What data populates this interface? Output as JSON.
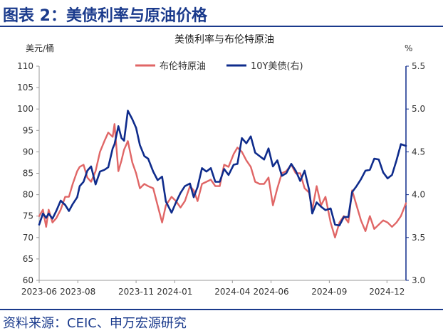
{
  "figure": {
    "title": "图表 2：美债利率与原油价格",
    "source": "资料来源：CEIC、申万宏源研究"
  },
  "colors": {
    "brand_blue": "#1a3a8c",
    "brent": "#e06666",
    "treasury": "#0f2c8c"
  },
  "chart_data": {
    "type": "line",
    "title": "美债利率与布伦特原油",
    "left_axis": {
      "unit": "美元/桶",
      "ylim": [
        60,
        110
      ],
      "ticks": [
        "110",
        "105",
        "100",
        "95",
        "90",
        "85",
        "80",
        "75",
        "70",
        "65",
        "60"
      ]
    },
    "right_axis": {
      "unit": "%",
      "ylim": [
        3.0,
        5.5
      ],
      "ticks": [
        "5.5",
        "5.0",
        "4.5",
        "4.0",
        "3.5",
        "3.0"
      ]
    },
    "xlim": [
      "2023-06-01",
      "2024-12-31"
    ],
    "x_ticks": [
      {
        "date": "2023-06-01",
        "label": "2023-06"
      },
      {
        "date": "2023-08-01",
        "label": "2023-08"
      },
      {
        "date": "2023-11-01",
        "label": "2023-11"
      },
      {
        "date": "2024-01-01",
        "label": "2024-01"
      },
      {
        "date": "2024-04-01",
        "label": "2024-04"
      },
      {
        "date": "2024-06-01",
        "label": "2024-06"
      },
      {
        "date": "2024-09-01",
        "label": "2024-09"
      },
      {
        "date": "2024-12-01",
        "label": "2024-12"
      }
    ],
    "legend": {
      "position": "top-center"
    },
    "series": [
      {
        "name": "布伦特原油",
        "axis": "left",
        "color": "#e06666",
        "points": [
          [
            "2023-06-01",
            75
          ],
          [
            "2023-06-07",
            76.5
          ],
          [
            "2023-06-12",
            72.5
          ],
          [
            "2023-06-16",
            76.5
          ],
          [
            "2023-06-22",
            73.5
          ],
          [
            "2023-06-28",
            74.5
          ],
          [
            "2023-07-05",
            76.5
          ],
          [
            "2023-07-12",
            79.5
          ],
          [
            "2023-07-18",
            79.5
          ],
          [
            "2023-07-24",
            82.5
          ],
          [
            "2023-07-31",
            85.5
          ],
          [
            "2023-08-04",
            86.5
          ],
          [
            "2023-08-10",
            87
          ],
          [
            "2023-08-16",
            84
          ],
          [
            "2023-08-22",
            83
          ],
          [
            "2023-08-29",
            85.5
          ],
          [
            "2023-09-05",
            90
          ],
          [
            "2023-09-12",
            92.5
          ],
          [
            "2023-09-18",
            94.5
          ],
          [
            "2023-09-25",
            93.5
          ],
          [
            "2023-09-28",
            96.5
          ],
          [
            "2023-10-04",
            85.5
          ],
          [
            "2023-10-09",
            88
          ],
          [
            "2023-10-13",
            90.5
          ],
          [
            "2023-10-19",
            92.5
          ],
          [
            "2023-10-26",
            87.5
          ],
          [
            "2023-11-01",
            85
          ],
          [
            "2023-11-07",
            81.5
          ],
          [
            "2023-11-14",
            82.5
          ],
          [
            "2023-11-20",
            82
          ],
          [
            "2023-11-28",
            81.5
          ],
          [
            "2023-12-05",
            77.5
          ],
          [
            "2023-12-12",
            73.5
          ],
          [
            "2023-12-18",
            77.5
          ],
          [
            "2023-12-27",
            79.5
          ],
          [
            "2024-01-03",
            78.5
          ],
          [
            "2024-01-10",
            77
          ],
          [
            "2024-01-17",
            78.5
          ],
          [
            "2024-01-25",
            82
          ],
          [
            "2024-01-31",
            81
          ],
          [
            "2024-02-06",
            78.5
          ],
          [
            "2024-02-13",
            82.5
          ],
          [
            "2024-02-20",
            83
          ],
          [
            "2024-02-27",
            83.5
          ],
          [
            "2024-03-05",
            82
          ],
          [
            "2024-03-12",
            82
          ],
          [
            "2024-03-19",
            87
          ],
          [
            "2024-03-26",
            86.5
          ],
          [
            "2024-04-03",
            89.5
          ],
          [
            "2024-04-09",
            91
          ],
          [
            "2024-04-16",
            90
          ],
          [
            "2024-04-23",
            88
          ],
          [
            "2024-04-30",
            86.5
          ],
          [
            "2024-05-07",
            83
          ],
          [
            "2024-05-14",
            82.5
          ],
          [
            "2024-05-21",
            82.5
          ],
          [
            "2024-05-28",
            84
          ],
          [
            "2024-06-04",
            77.5
          ],
          [
            "2024-06-11",
            81.5
          ],
          [
            "2024-06-18",
            85
          ],
          [
            "2024-06-25",
            85.5
          ],
          [
            "2024-07-03",
            87
          ],
          [
            "2024-07-10",
            85
          ],
          [
            "2024-07-17",
            85
          ],
          [
            "2024-07-24",
            81.5
          ],
          [
            "2024-07-31",
            80.5
          ],
          [
            "2024-08-05",
            76.5
          ],
          [
            "2024-08-12",
            82
          ],
          [
            "2024-08-19",
            77.5
          ],
          [
            "2024-08-26",
            79.5
          ],
          [
            "2024-09-03",
            73.5
          ],
          [
            "2024-09-10",
            70
          ],
          [
            "2024-09-17",
            73.5
          ],
          [
            "2024-09-24",
            75
          ],
          [
            "2024-10-01",
            73.5
          ],
          [
            "2024-10-07",
            81
          ],
          [
            "2024-10-14",
            77.5
          ],
          [
            "2024-10-21",
            74
          ],
          [
            "2024-10-28",
            71.5
          ],
          [
            "2024-11-04",
            75
          ],
          [
            "2024-11-11",
            72
          ],
          [
            "2024-11-18",
            73
          ],
          [
            "2024-11-25",
            74
          ],
          [
            "2024-12-02",
            73.5
          ],
          [
            "2024-12-09",
            72.5
          ],
          [
            "2024-12-16",
            73.5
          ],
          [
            "2024-12-23",
            75
          ],
          [
            "2024-12-31",
            78
          ]
        ]
      },
      {
        "name": "10Y美债(右)",
        "axis": "right",
        "color": "#0f2c8c",
        "points": [
          [
            "2023-06-01",
            3.65
          ],
          [
            "2023-06-07",
            3.78
          ],
          [
            "2023-06-12",
            3.73
          ],
          [
            "2023-06-16",
            3.78
          ],
          [
            "2023-06-22",
            3.72
          ],
          [
            "2023-06-28",
            3.81
          ],
          [
            "2023-07-05",
            3.93
          ],
          [
            "2023-07-12",
            3.88
          ],
          [
            "2023-07-18",
            3.81
          ],
          [
            "2023-07-24",
            3.89
          ],
          [
            "2023-07-31",
            3.97
          ],
          [
            "2023-08-04",
            4.1
          ],
          [
            "2023-08-10",
            4.15
          ],
          [
            "2023-08-16",
            4.28
          ],
          [
            "2023-08-22",
            4.33
          ],
          [
            "2023-08-29",
            4.12
          ],
          [
            "2023-09-05",
            4.27
          ],
          [
            "2023-09-12",
            4.29
          ],
          [
            "2023-09-18",
            4.32
          ],
          [
            "2023-09-25",
            4.54
          ],
          [
            "2023-09-28",
            4.59
          ],
          [
            "2023-10-04",
            4.8
          ],
          [
            "2023-10-09",
            4.66
          ],
          [
            "2023-10-13",
            4.63
          ],
          [
            "2023-10-19",
            4.98
          ],
          [
            "2023-10-26",
            4.88
          ],
          [
            "2023-11-01",
            4.78
          ],
          [
            "2023-11-07",
            4.58
          ],
          [
            "2023-11-14",
            4.45
          ],
          [
            "2023-11-20",
            4.42
          ],
          [
            "2023-11-28",
            4.27
          ],
          [
            "2023-12-05",
            4.17
          ],
          [
            "2023-12-12",
            4.21
          ],
          [
            "2023-12-18",
            3.92
          ],
          [
            "2023-12-27",
            3.79
          ],
          [
            "2024-01-03",
            3.91
          ],
          [
            "2024-01-10",
            4.02
          ],
          [
            "2024-01-17",
            4.1
          ],
          [
            "2024-01-25",
            4.13
          ],
          [
            "2024-01-31",
            3.97
          ],
          [
            "2024-02-06",
            4.09
          ],
          [
            "2024-02-13",
            4.31
          ],
          [
            "2024-02-20",
            4.27
          ],
          [
            "2024-02-27",
            4.31
          ],
          [
            "2024-03-05",
            4.15
          ],
          [
            "2024-03-12",
            4.15
          ],
          [
            "2024-03-19",
            4.3
          ],
          [
            "2024-03-26",
            4.23
          ],
          [
            "2024-04-03",
            4.35
          ],
          [
            "2024-04-09",
            4.36
          ],
          [
            "2024-04-16",
            4.66
          ],
          [
            "2024-04-23",
            4.6
          ],
          [
            "2024-04-30",
            4.68
          ],
          [
            "2024-05-07",
            4.49
          ],
          [
            "2024-05-14",
            4.45
          ],
          [
            "2024-05-21",
            4.41
          ],
          [
            "2024-05-28",
            4.54
          ],
          [
            "2024-06-04",
            4.33
          ],
          [
            "2024-06-11",
            4.4
          ],
          [
            "2024-06-18",
            4.22
          ],
          [
            "2024-06-25",
            4.25
          ],
          [
            "2024-07-03",
            4.36
          ],
          [
            "2024-07-10",
            4.28
          ],
          [
            "2024-07-17",
            4.16
          ],
          [
            "2024-07-24",
            4.28
          ],
          [
            "2024-07-31",
            4.06
          ],
          [
            "2024-08-05",
            3.78
          ],
          [
            "2024-08-12",
            3.91
          ],
          [
            "2024-08-19",
            3.86
          ],
          [
            "2024-08-26",
            3.82
          ],
          [
            "2024-09-03",
            3.84
          ],
          [
            "2024-09-10",
            3.65
          ],
          [
            "2024-09-17",
            3.64
          ],
          [
            "2024-09-24",
            3.74
          ],
          [
            "2024-10-01",
            3.74
          ],
          [
            "2024-10-07",
            4.03
          ],
          [
            "2024-10-14",
            4.1
          ],
          [
            "2024-10-21",
            4.18
          ],
          [
            "2024-10-28",
            4.28
          ],
          [
            "2024-11-04",
            4.29
          ],
          [
            "2024-11-11",
            4.42
          ],
          [
            "2024-11-18",
            4.41
          ],
          [
            "2024-11-25",
            4.26
          ],
          [
            "2024-12-02",
            4.19
          ],
          [
            "2024-12-09",
            4.23
          ],
          [
            "2024-12-16",
            4.4
          ],
          [
            "2024-12-23",
            4.59
          ],
          [
            "2024-12-31",
            4.57
          ]
        ]
      }
    ]
  }
}
